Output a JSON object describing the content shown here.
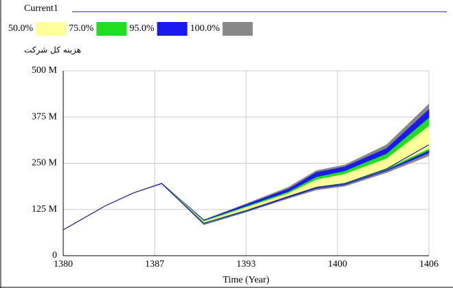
{
  "chart_data": {
    "type": "sensitivity",
    "title": "هزینه کل شرکت",
    "x_label": "Time (Year)",
    "x": [
      1380,
      1383,
      1385,
      1387,
      1390,
      1393,
      1396,
      1398,
      1400,
      1403,
      1406
    ],
    "xlim": [
      1380,
      1406
    ],
    "xticks": [
      1380,
      {
        "value": 1386.5,
        "label": "1387"
      },
      1393,
      {
        "value": 1399.5,
        "label": "1400"
      },
      1406
    ],
    "ylim": [
      0,
      500000000
    ],
    "yticks": [
      0,
      {
        "value": 125000000,
        "label": "125 M"
      },
      {
        "value": 250000000,
        "label": "250 M"
      },
      {
        "value": 375000000,
        "label": "375 M"
      },
      {
        "value": 500000000,
        "label": "500 M"
      }
    ],
    "grid": true,
    "series": [
      {
        "name": "Current1",
        "color": "#1c1c8c",
        "values": [
          70000000,
          135000000,
          170000000,
          195000000,
          88000000,
          122000000,
          160000000,
          185000000,
          195000000,
          235000000,
          300000000
        ]
      }
    ],
    "bands": [
      {
        "name": "50.0%",
        "color": "#ffff99",
        "lower": [
          70000000,
          135000000,
          170000000,
          195000000,
          87000000,
          122000000,
          162000000,
          186000000,
          197000000,
          236000000,
          290000000
        ],
        "upper": [
          70000000,
          135000000,
          170000000,
          195000000,
          92000000,
          130000000,
          168000000,
          205000000,
          220000000,
          262000000,
          350000000
        ]
      },
      {
        "name": "75.0%",
        "color": "#22dd22",
        "lower": [
          70000000,
          135000000,
          170000000,
          195000000,
          86000000,
          121000000,
          160000000,
          184000000,
          194000000,
          233000000,
          285000000
        ],
        "upper": [
          70000000,
          135000000,
          170000000,
          195000000,
          94000000,
          133000000,
          172000000,
          212000000,
          228000000,
          275000000,
          372000000
        ]
      },
      {
        "name": "95.0%",
        "color": "#1a1aee",
        "lower": [
          70000000,
          135000000,
          170000000,
          195000000,
          85000000,
          120000000,
          158000000,
          182000000,
          192000000,
          230000000,
          278000000
        ],
        "upper": [
          70000000,
          135000000,
          170000000,
          196000000,
          96000000,
          138000000,
          180000000,
          225000000,
          240000000,
          290000000,
          395000000
        ]
      },
      {
        "name": "100.0%",
        "color": "#888888",
        "lower": [
          70000000,
          135000000,
          170000000,
          195000000,
          84000000,
          118000000,
          155000000,
          178000000,
          188000000,
          225000000,
          270000000
        ],
        "upper": [
          70000000,
          135000000,
          170000000,
          196000000,
          97000000,
          140000000,
          185000000,
          230000000,
          245000000,
          300000000,
          410000000
        ]
      }
    ]
  }
}
